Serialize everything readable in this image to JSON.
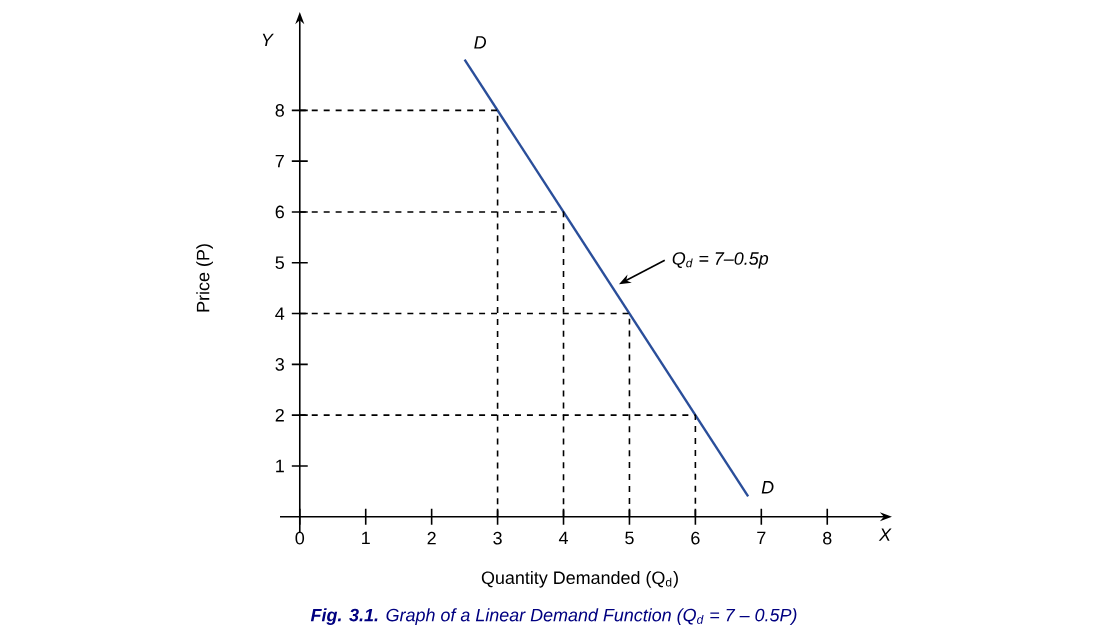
{
  "chart_data": {
    "type": "line",
    "title": "**Fig. 3.1.** Graph of a Linear Demand Function (Q$_{d}$ = 7 – 0.5P)",
    "xlabel": "Quantity Demanded (Q$_{d}$)",
    "ylabel": "Price (P)",
    "xlim": [
      -0.3,
      8.8
    ],
    "ylim": [
      -0.3,
      9.7
    ],
    "xticks": [
      0,
      1,
      2,
      3,
      4,
      5,
      6,
      7,
      8
    ],
    "yticks": [
      1,
      2,
      3,
      4,
      5,
      6,
      7,
      8
    ],
    "series": [
      {
        "color": "#2a4e9a",
        "x": [
          2.5,
          6.8
        ],
        "values": [
          9,
          0.4
        ],
        "line_style": "solid"
      },
      {
        "color": "#000000",
        "x": [
          0,
          3,
          3
        ],
        "values": [
          8,
          8,
          0
        ],
        "line_style": "dashed"
      },
      {
        "color": "#000000",
        "x": [
          0,
          4,
          4
        ],
        "values": [
          6,
          6,
          0
        ],
        "line_style": "dashed"
      },
      {
        "color": "#000000",
        "x": [
          0,
          5,
          5
        ],
        "values": [
          4,
          4,
          0
        ],
        "line_style": "dashed"
      },
      {
        "color": "#000000",
        "x": [
          0,
          6,
          6
        ],
        "values": [
          2,
          2,
          0
        ],
        "line_style": "dashed"
      }
    ],
    "annotations": [
      {
        "text": "D",
        "x": 2.5,
        "y": 9
      },
      {
        "text": "D",
        "x": 6.8,
        "y": 0.4
      },
      {
        "text": "Q$_{d}$ = 7–0.5p",
        "x": 4.75,
        "y": 4.5
      },
      "X",
      "Y"
    ]
  }
}
